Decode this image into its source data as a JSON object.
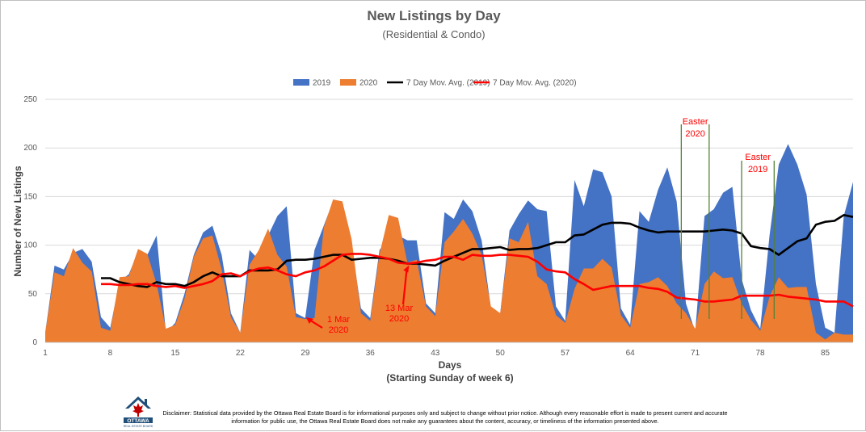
{
  "chart_data": {
    "type": "area",
    "title": "New Listings by Day",
    "subtitle": "(Residential & Condo)",
    "xlabel": "Days",
    "xlabel_sub": "(Starting Sunday of week 6)",
    "ylabel": "Number of New Listings",
    "xlim": [
      1,
      88
    ],
    "ylim": [
      0,
      250
    ],
    "yticks": [
      0,
      50,
      100,
      150,
      200,
      250
    ],
    "xticks": [
      1,
      8,
      15,
      22,
      29,
      36,
      43,
      50,
      57,
      64,
      71,
      78,
      85
    ],
    "grid": "horizontal",
    "legend_position": "top",
    "series": [
      {
        "name": "2019",
        "kind": "area",
        "color": "#4472c4",
        "x": [
          1,
          2,
          3,
          4,
          5,
          6,
          7,
          8,
          9,
          10,
          11,
          12,
          13,
          14,
          15,
          16,
          17,
          18,
          19,
          20,
          21,
          22,
          23,
          24,
          25,
          26,
          27,
          28,
          29,
          30,
          31,
          32,
          33,
          34,
          35,
          36,
          37,
          38,
          39,
          40,
          41,
          42,
          43,
          44,
          45,
          46,
          47,
          48,
          49,
          50,
          51,
          52,
          53,
          54,
          55,
          56,
          57,
          58,
          59,
          60,
          61,
          62,
          63,
          64,
          65,
          66,
          67,
          68,
          69,
          70,
          71,
          72,
          73,
          74,
          75,
          76,
          77,
          78,
          79,
          80,
          81,
          82,
          83,
          84,
          85,
          86,
          87,
          88
        ],
        "values": [
          10,
          79,
          75,
          92,
          96,
          83,
          26,
          15,
          63,
          70,
          93,
          90,
          110,
          10,
          20,
          50,
          90,
          113,
          120,
          90,
          30,
          10,
          95,
          85,
          110,
          130,
          140,
          30,
          25,
          95,
          120,
          145,
          140,
          100,
          35,
          25,
          95,
          108,
          110,
          105,
          105,
          40,
          30,
          134,
          127,
          147,
          135,
          105,
          35,
          30,
          115,
          132,
          146,
          137,
          135,
          37,
          22,
          167,
          140,
          178,
          175,
          150,
          35,
          18,
          135,
          124,
          157,
          180,
          145,
          40,
          11,
          130,
          137,
          154,
          160,
          65,
          33,
          14,
          110,
          183,
          204,
          183,
          152,
          60,
          15,
          10,
          130,
          165
        ]
      },
      {
        "name": "2020",
        "kind": "area",
        "color": "#ed7d31",
        "x": [
          1,
          2,
          3,
          4,
          5,
          6,
          7,
          8,
          9,
          10,
          11,
          12,
          13,
          14,
          15,
          16,
          17,
          18,
          19,
          20,
          21,
          22,
          23,
          24,
          25,
          26,
          27,
          28,
          29,
          30,
          31,
          32,
          33,
          34,
          35,
          36,
          37,
          38,
          39,
          40,
          41,
          42,
          43,
          44,
          45,
          46,
          47,
          48,
          49,
          50,
          51,
          52,
          53,
          54,
          55,
          56,
          57,
          58,
          59,
          60,
          61,
          62,
          63,
          64,
          65,
          66,
          67,
          68,
          69,
          70,
          71,
          72,
          73,
          74,
          75,
          76,
          77,
          78,
          79,
          80,
          81,
          82,
          83,
          84,
          85,
          86,
          87,
          88
        ],
        "values": [
          10,
          72,
          68,
          97,
          82,
          73,
          15,
          12,
          67,
          68,
          96,
          91,
          60,
          14,
          18,
          45,
          88,
          107,
          110,
          75,
          26,
          10,
          80,
          95,
          117,
          90,
          78,
          26,
          24,
          25,
          118,
          147,
          145,
          106,
          30,
          22,
          91,
          131,
          128,
          82,
          85,
          37,
          27,
          103,
          114,
          127,
          112,
          90,
          37,
          30,
          107,
          103,
          124,
          68,
          60,
          28,
          20,
          55,
          76,
          76,
          86,
          77,
          28,
          15,
          60,
          62,
          67,
          58,
          40,
          30,
          14,
          60,
          73,
          66,
          67,
          40,
          23,
          12,
          47,
          67,
          56,
          57,
          57,
          10,
          3,
          10,
          8,
          8
        ]
      },
      {
        "name": "7 Day Mov. Avg. (2019)",
        "kind": "line",
        "color": "#000000",
        "x": [
          7,
          8,
          9,
          10,
          11,
          12,
          13,
          14,
          15,
          16,
          17,
          18,
          19,
          20,
          21,
          22,
          23,
          24,
          25,
          26,
          27,
          28,
          29,
          30,
          31,
          32,
          33,
          34,
          35,
          36,
          37,
          38,
          39,
          40,
          41,
          42,
          43,
          44,
          45,
          46,
          47,
          48,
          49,
          50,
          51,
          52,
          53,
          54,
          55,
          56,
          57,
          58,
          59,
          60,
          61,
          62,
          63,
          64,
          65,
          66,
          67,
          68,
          69,
          70,
          71,
          72,
          73,
          74,
          75,
          76,
          77,
          78,
          79,
          80,
          81,
          82,
          83,
          84,
          85,
          86,
          87,
          88
        ],
        "values": [
          66,
          66,
          62,
          60,
          58,
          57,
          62,
          60,
          60,
          58,
          62,
          68,
          72,
          68,
          68,
          68,
          74,
          74,
          74,
          75,
          84,
          85,
          85,
          86,
          88,
          90,
          90,
          85,
          86,
          87,
          87,
          86,
          84,
          81,
          81,
          80,
          79,
          84,
          88,
          92,
          96,
          96,
          97,
          98,
          95,
          96,
          96,
          97,
          100,
          103,
          103,
          110,
          111,
          116,
          121,
          123,
          123,
          122,
          118,
          115,
          113,
          114,
          114,
          114,
          114,
          114,
          115,
          116,
          115,
          112,
          99,
          97,
          96,
          90,
          97,
          104,
          107,
          121,
          124,
          125,
          131,
          129
        ]
      },
      {
        "name": "7 Day Mov. Avg. (2020)",
        "kind": "line",
        "color": "#ff0000",
        "x": [
          7,
          8,
          9,
          10,
          11,
          12,
          13,
          14,
          15,
          16,
          17,
          18,
          19,
          20,
          21,
          22,
          23,
          24,
          25,
          26,
          27,
          28,
          29,
          30,
          31,
          32,
          33,
          34,
          35,
          36,
          37,
          38,
          39,
          40,
          41,
          42,
          43,
          44,
          45,
          46,
          47,
          48,
          49,
          50,
          51,
          52,
          53,
          54,
          55,
          56,
          57,
          58,
          59,
          60,
          61,
          62,
          63,
          64,
          65,
          66,
          67,
          68,
          69,
          70,
          71,
          72,
          73,
          74,
          75,
          76,
          77,
          78,
          79,
          80,
          81,
          82,
          83,
          84,
          85,
          86,
          87,
          88
        ],
        "values": [
          60,
          60,
          59,
          59,
          60,
          60,
          58,
          57,
          58,
          56,
          58,
          60,
          63,
          70,
          71,
          68,
          73,
          76,
          77,
          74,
          70,
          68,
          72,
          74,
          78,
          84,
          90,
          91,
          91,
          90,
          88,
          86,
          82,
          81,
          82,
          84,
          85,
          88,
          88,
          85,
          90,
          89,
          89,
          90,
          90,
          89,
          88,
          83,
          75,
          73,
          72,
          65,
          60,
          54,
          56,
          58,
          58,
          58,
          58,
          56,
          55,
          52,
          46,
          45,
          44,
          42,
          42,
          43,
          44,
          48,
          48,
          48,
          48,
          49,
          47,
          46,
          45,
          44,
          42,
          42,
          42,
          37
        ]
      }
    ],
    "annotations": [
      {
        "text": [
          "1 Mar",
          "2020"
        ],
        "x": 29,
        "y": 25,
        "color": "#ff0000"
      },
      {
        "text": [
          "13 Mar",
          "2020"
        ],
        "x": 40,
        "y": 80,
        "color": "#ff0000"
      },
      {
        "text": [
          "Easter",
          "2020"
        ],
        "x_range": [
          69.5,
          72.5
        ],
        "color": "#ff0000"
      },
      {
        "text": [
          "Easter",
          "2019"
        ],
        "x_range": [
          76,
          79.5
        ],
        "color": "#ff0000"
      }
    ]
  },
  "disclaimer": "Disclaimer: Statistical data provided by the Ottawa Real Estate Board is for informational purposes only and subject to change without prior notice. Although every reasonable effort is made to present current and accurate information for public use, the Ottawa Real Estate Board does not make any guarantees about the content, accuracy, or timeliness of the information presented above.",
  "logo": {
    "text": "OTTAWA",
    "subtext": "REAL ESTATE BOARD",
    "color": "#1f4e79",
    "accent": "#c00000"
  }
}
